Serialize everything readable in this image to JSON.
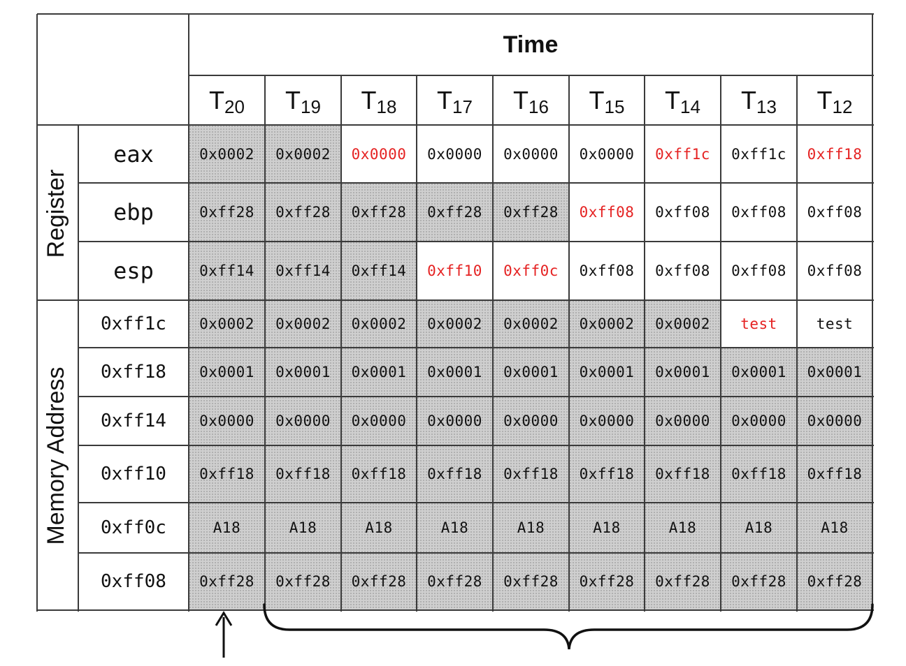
{
  "header": {
    "time_label": "Time",
    "t_letter": "T",
    "time_steps": [
      "20",
      "19",
      "18",
      "17",
      "16",
      "15",
      "14",
      "13",
      "12"
    ]
  },
  "sections": {
    "register_label": "Register",
    "memory_label": "Memory Address"
  },
  "rows": [
    {
      "label": "eax",
      "group": "register",
      "cells": [
        {
          "value": "0x0002",
          "shaded": true,
          "red": false
        },
        {
          "value": "0x0002",
          "shaded": true,
          "red": false
        },
        {
          "value": "0x0000",
          "shaded": false,
          "red": true
        },
        {
          "value": "0x0000",
          "shaded": false,
          "red": false
        },
        {
          "value": "0x0000",
          "shaded": false,
          "red": false
        },
        {
          "value": "0x0000",
          "shaded": false,
          "red": false
        },
        {
          "value": "0xff1c",
          "shaded": false,
          "red": true
        },
        {
          "value": "0xff1c",
          "shaded": false,
          "red": false
        },
        {
          "value": "0xff18",
          "shaded": false,
          "red": true
        }
      ]
    },
    {
      "label": "ebp",
      "group": "register",
      "cells": [
        {
          "value": "0xff28",
          "shaded": true,
          "red": false
        },
        {
          "value": "0xff28",
          "shaded": true,
          "red": false
        },
        {
          "value": "0xff28",
          "shaded": true,
          "red": false
        },
        {
          "value": "0xff28",
          "shaded": true,
          "red": false
        },
        {
          "value": "0xff28",
          "shaded": true,
          "red": false
        },
        {
          "value": "0xff08",
          "shaded": false,
          "red": true
        },
        {
          "value": "0xff08",
          "shaded": false,
          "red": false
        },
        {
          "value": "0xff08",
          "shaded": false,
          "red": false
        },
        {
          "value": "0xff08",
          "shaded": false,
          "red": false
        }
      ]
    },
    {
      "label": "esp",
      "group": "register",
      "cells": [
        {
          "value": "0xff14",
          "shaded": true,
          "red": false
        },
        {
          "value": "0xff14",
          "shaded": true,
          "red": false
        },
        {
          "value": "0xff14",
          "shaded": true,
          "red": false
        },
        {
          "value": "0xff10",
          "shaded": false,
          "red": true
        },
        {
          "value": "0xff0c",
          "shaded": false,
          "red": true
        },
        {
          "value": "0xff08",
          "shaded": false,
          "red": false
        },
        {
          "value": "0xff08",
          "shaded": false,
          "red": false
        },
        {
          "value": "0xff08",
          "shaded": false,
          "red": false
        },
        {
          "value": "0xff08",
          "shaded": false,
          "red": false
        }
      ]
    },
    {
      "label": "0xff1c",
      "group": "memory",
      "cells": [
        {
          "value": "0x0002",
          "shaded": true,
          "red": false
        },
        {
          "value": "0x0002",
          "shaded": true,
          "red": false
        },
        {
          "value": "0x0002",
          "shaded": true,
          "red": false
        },
        {
          "value": "0x0002",
          "shaded": true,
          "red": false
        },
        {
          "value": "0x0002",
          "shaded": true,
          "red": false
        },
        {
          "value": "0x0002",
          "shaded": true,
          "red": false
        },
        {
          "value": "0x0002",
          "shaded": true,
          "red": false
        },
        {
          "value": "test",
          "shaded": false,
          "red": true
        },
        {
          "value": "test",
          "shaded": false,
          "red": false
        }
      ]
    },
    {
      "label": "0xff18",
      "group": "memory",
      "cells": [
        {
          "value": "0x0001",
          "shaded": true,
          "red": false
        },
        {
          "value": "0x0001",
          "shaded": true,
          "red": false
        },
        {
          "value": "0x0001",
          "shaded": true,
          "red": false
        },
        {
          "value": "0x0001",
          "shaded": true,
          "red": false
        },
        {
          "value": "0x0001",
          "shaded": true,
          "red": false
        },
        {
          "value": "0x0001",
          "shaded": true,
          "red": false
        },
        {
          "value": "0x0001",
          "shaded": true,
          "red": false
        },
        {
          "value": "0x0001",
          "shaded": true,
          "red": false
        },
        {
          "value": "0x0001",
          "shaded": true,
          "red": false
        }
      ]
    },
    {
      "label": "0xff14",
      "group": "memory",
      "cells": [
        {
          "value": "0x0000",
          "shaded": true,
          "red": false
        },
        {
          "value": "0x0000",
          "shaded": true,
          "red": false
        },
        {
          "value": "0x0000",
          "shaded": true,
          "red": false
        },
        {
          "value": "0x0000",
          "shaded": true,
          "red": false
        },
        {
          "value": "0x0000",
          "shaded": true,
          "red": false
        },
        {
          "value": "0x0000",
          "shaded": true,
          "red": false
        },
        {
          "value": "0x0000",
          "shaded": true,
          "red": false
        },
        {
          "value": "0x0000",
          "shaded": true,
          "red": false
        },
        {
          "value": "0x0000",
          "shaded": true,
          "red": false
        }
      ]
    },
    {
      "label": "0xff10",
      "group": "memory",
      "cells": [
        {
          "value": "0xff18",
          "shaded": true,
          "red": false
        },
        {
          "value": "0xff18",
          "shaded": true,
          "red": false
        },
        {
          "value": "0xff18",
          "shaded": true,
          "red": false
        },
        {
          "value": "0xff18",
          "shaded": true,
          "red": false
        },
        {
          "value": "0xff18",
          "shaded": true,
          "red": false
        },
        {
          "value": "0xff18",
          "shaded": true,
          "red": false
        },
        {
          "value": "0xff18",
          "shaded": true,
          "red": false
        },
        {
          "value": "0xff18",
          "shaded": true,
          "red": false
        },
        {
          "value": "0xff18",
          "shaded": true,
          "red": false
        }
      ]
    },
    {
      "label": "0xff0c",
      "group": "memory",
      "cells": [
        {
          "value": "A18",
          "shaded": true,
          "red": false
        },
        {
          "value": "A18",
          "shaded": true,
          "red": false
        },
        {
          "value": "A18",
          "shaded": true,
          "red": false
        },
        {
          "value": "A18",
          "shaded": true,
          "red": false
        },
        {
          "value": "A18",
          "shaded": true,
          "red": false
        },
        {
          "value": "A18",
          "shaded": true,
          "red": false
        },
        {
          "value": "A18",
          "shaded": true,
          "red": false
        },
        {
          "value": "A18",
          "shaded": true,
          "red": false
        },
        {
          "value": "A18",
          "shaded": true,
          "red": false
        }
      ]
    },
    {
      "label": "0xff08",
      "group": "memory",
      "cells": [
        {
          "value": "0xff28",
          "shaded": true,
          "red": false
        },
        {
          "value": "0xff28",
          "shaded": true,
          "red": false
        },
        {
          "value": "0xff28",
          "shaded": true,
          "red": false
        },
        {
          "value": "0xff28",
          "shaded": true,
          "red": false
        },
        {
          "value": "0xff28",
          "shaded": true,
          "red": false
        },
        {
          "value": "0xff28",
          "shaded": true,
          "red": false
        },
        {
          "value": "0xff28",
          "shaded": true,
          "red": false
        },
        {
          "value": "0xff28",
          "shaded": true,
          "red": false
        },
        {
          "value": "0xff28",
          "shaded": true,
          "red": false
        }
      ]
    }
  ],
  "colors": {
    "highlight_red": "#e52222",
    "shade_gray": "#cfcfcf",
    "line": "#3a3a3a"
  },
  "annotations": {
    "arrow_icon": "up-arrow-icon",
    "brace_icon": "curly-brace-icon"
  }
}
